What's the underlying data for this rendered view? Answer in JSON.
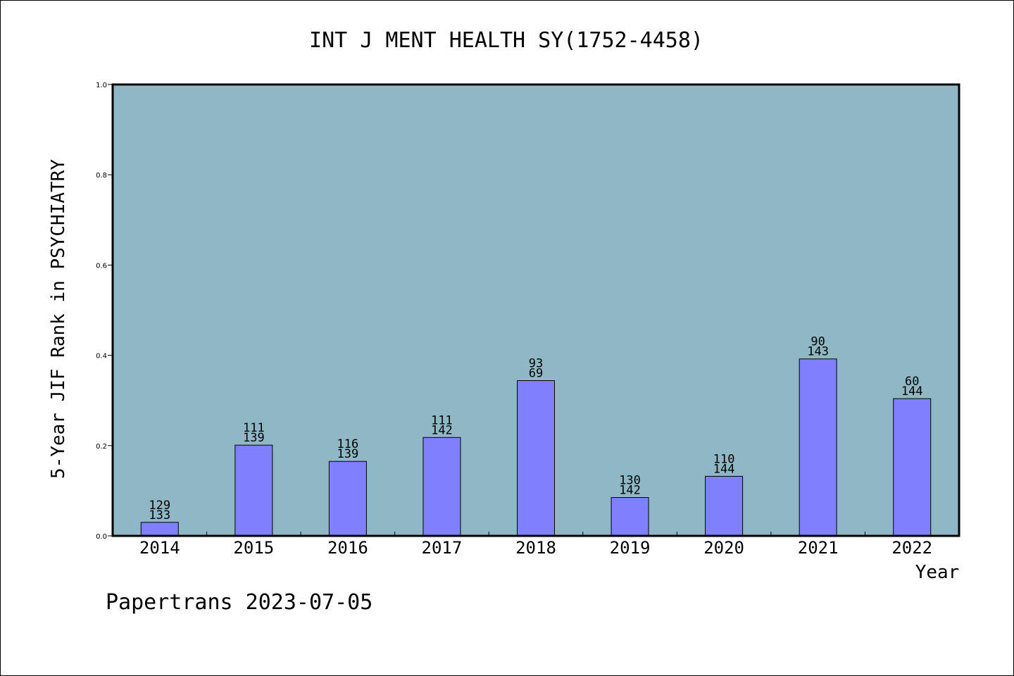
{
  "chart_data": {
    "type": "bar",
    "title": "INT J MENT HEALTH SY(1752-4458)",
    "xlabel": "Year",
    "ylabel": "5-Year JIF Rank in PSYCHIATRY",
    "categories": [
      "2014",
      "2015",
      "2016",
      "2017",
      "2018",
      "2019",
      "2020",
      "2021",
      "2022"
    ],
    "values": [
      0.03,
      0.201,
      0.165,
      0.218,
      0.344,
      0.085,
      0.132,
      0.392,
      0.304
    ],
    "labels_top": [
      "129",
      "111",
      "116",
      "111",
      "93",
      "130",
      "110",
      "90",
      "60"
    ],
    "labels_bottom": [
      "133",
      "139",
      "139",
      "142",
      "69",
      "142",
      "144",
      "143",
      "144"
    ],
    "yticks": [
      "0.0",
      "0.2",
      "0.4",
      "0.6",
      "0.8",
      "1.0"
    ],
    "ylim": [
      0,
      1.0
    ],
    "grid": false,
    "colors": {
      "plot_bg": "#8fb7c5",
      "bar_fill": "#8080ff",
      "bar_stroke": "#000000"
    }
  },
  "footer": "Papertrans 2023-07-05"
}
